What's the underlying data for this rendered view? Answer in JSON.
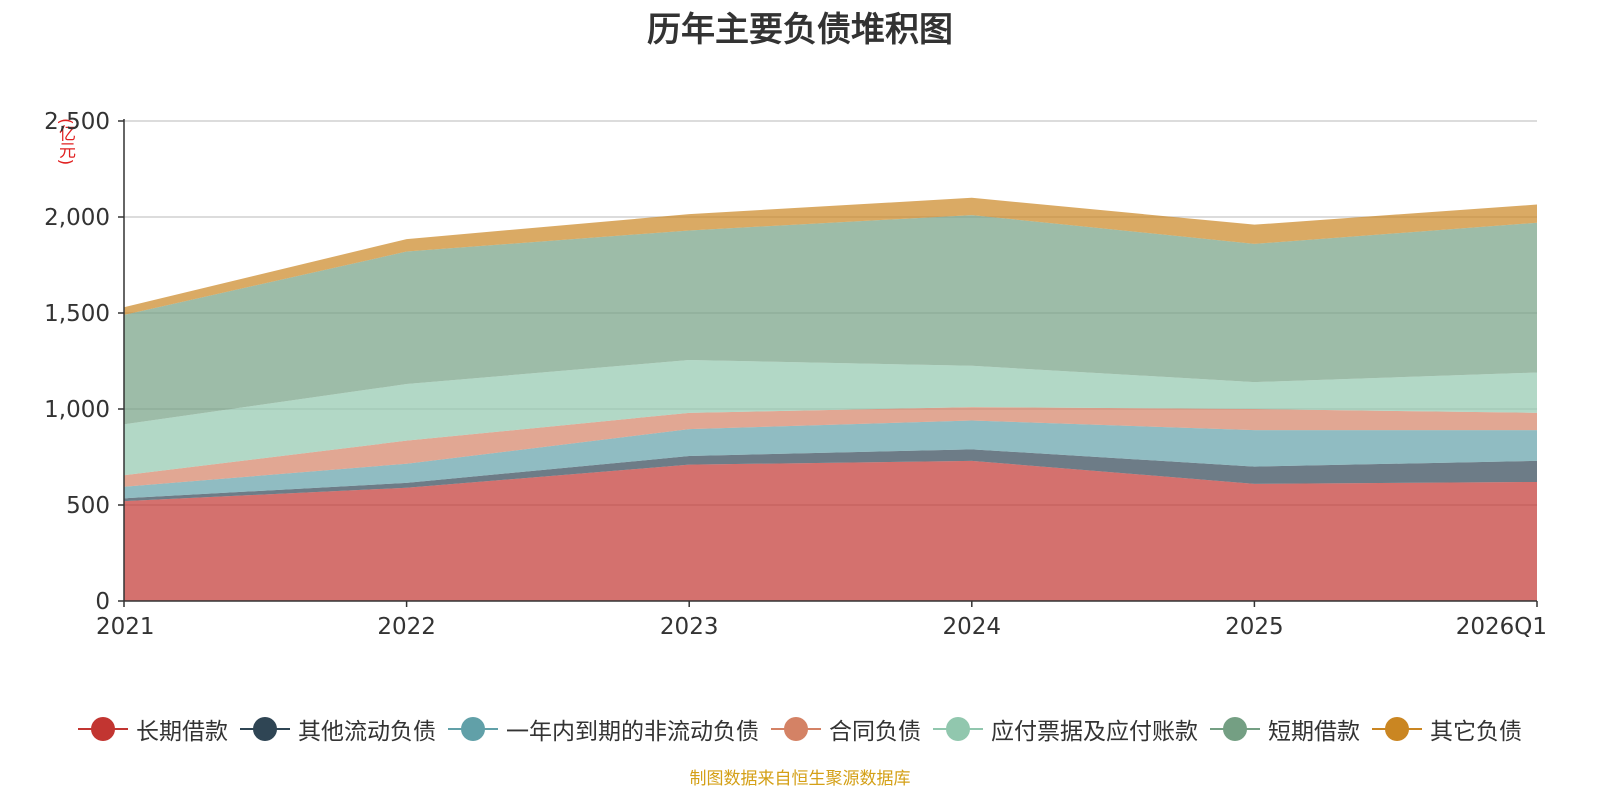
{
  "chart_data": {
    "type": "area",
    "stacked": true,
    "title": "历年主要负债堆积图",
    "unit": "(亿元)",
    "categories": [
      "2021",
      "2022",
      "2023",
      "2024",
      "2025",
      "2026Q1"
    ],
    "ylim": [
      0,
      2500
    ],
    "yticks": [
      0,
      500,
      1000,
      1500,
      2000,
      2500
    ],
    "ytick_labels": [
      "0",
      "500",
      "1,000",
      "1,500",
      "2,000",
      "2,500"
    ],
    "grid": true,
    "legend_position": "bottom",
    "series": [
      {
        "name": "长期借款",
        "color": "#c23531",
        "values": [
          520,
          590,
          710,
          730,
          610,
          620
        ]
      },
      {
        "name": "其他流动负债",
        "color": "#2f4554",
        "values": [
          15,
          25,
          45,
          60,
          90,
          110
        ]
      },
      {
        "name": "一年内到期的非流动负债",
        "color": "#61a0a8",
        "values": [
          60,
          100,
          140,
          150,
          190,
          160
        ]
      },
      {
        "name": "合同负债",
        "color": "#d48265",
        "values": [
          60,
          120,
          85,
          70,
          110,
          90
        ]
      },
      {
        "name": "应付票据及应付账款",
        "color": "#91c7ae",
        "values": [
          265,
          295,
          275,
          215,
          140,
          210
        ]
      },
      {
        "name": "短期借款",
        "color": "#749f83",
        "values": [
          570,
          690,
          675,
          785,
          720,
          780
        ]
      },
      {
        "name": "其它负债",
        "color": "#ca8622",
        "values": [
          40,
          65,
          85,
          90,
          100,
          95
        ]
      }
    ]
  },
  "source_note": "制图数据来自恒生聚源数据库"
}
